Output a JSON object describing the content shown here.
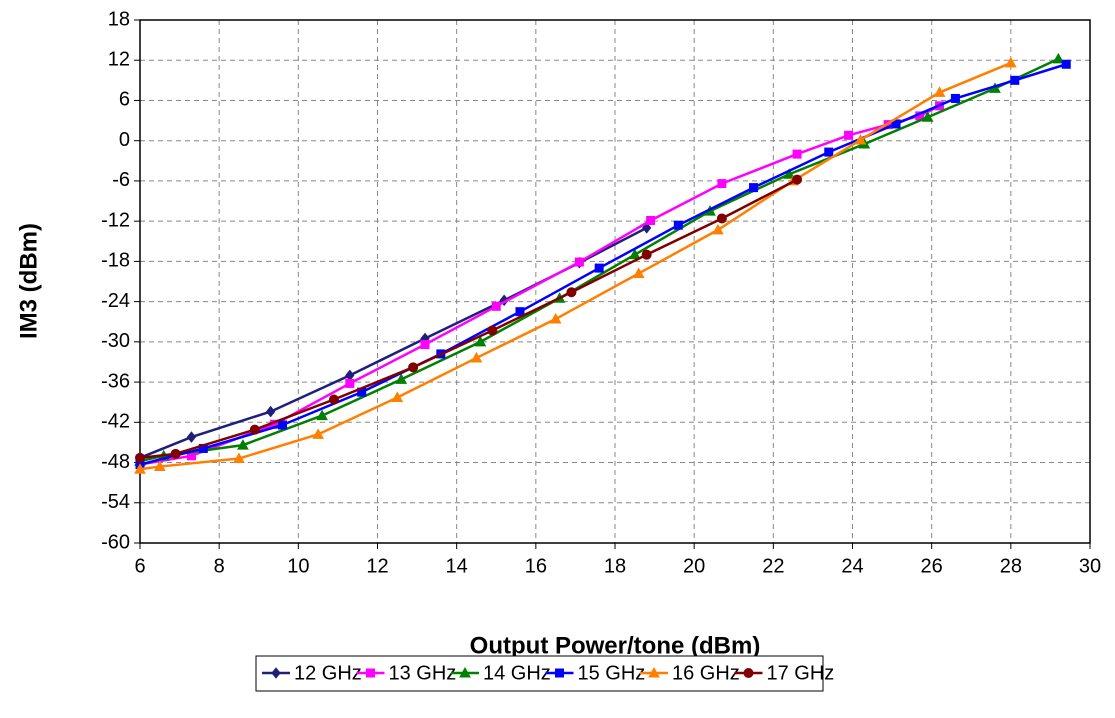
{
  "chart_data": {
    "type": "line",
    "xlabel": "Output Power/tone (dBm)",
    "ylabel": "IM3 (dBm)",
    "xlim": [
      6,
      30
    ],
    "xticks": [
      6,
      8,
      10,
      12,
      14,
      16,
      18,
      20,
      22,
      24,
      26,
      28,
      30
    ],
    "ylim": [
      -60,
      18
    ],
    "yticks": [
      -60,
      -54,
      -48,
      -42,
      -36,
      -30,
      -24,
      -18,
      -12,
      -6,
      0,
      6,
      12,
      18
    ],
    "grid": true,
    "legend": "bottom",
    "series": [
      {
        "name": "12 GHz",
        "color": "#1f1f7a",
        "marker": "diamond",
        "x": [
          6,
          7.3,
          9.3,
          11.3,
          13.2,
          15.2,
          17.1,
          18.8
        ],
        "values": [
          -47.3,
          -44.2,
          -40.4,
          -35,
          -29.5,
          -23.8,
          -18.2,
          -13
        ]
      },
      {
        "name": "13 GHz",
        "color": "#ff00ff",
        "marker": "square",
        "x": [
          6,
          7.3,
          9.4,
          11.3,
          13.2,
          15,
          17.1,
          18.9,
          20.7,
          22.6,
          23.9,
          24.9,
          25.7,
          26.2
        ],
        "values": [
          -48.3,
          -47,
          -42.3,
          -36.2,
          -30.4,
          -24.7,
          -18.1,
          -11.9,
          -6.4,
          -2,
          0.8,
          2.4,
          3.7,
          5.2
        ]
      },
      {
        "name": "14 GHz",
        "color": "#008000",
        "marker": "triangle",
        "x": [
          6,
          6.6,
          8.6,
          10.6,
          12.6,
          14.6,
          16.6,
          18.5,
          20.4,
          22.4,
          24.3,
          25.9,
          27.6,
          29.2
        ],
        "values": [
          -47.8,
          -47,
          -45.4,
          -41,
          -35.6,
          -30,
          -23.5,
          -17,
          -10.5,
          -5,
          -0.5,
          3.5,
          7.8,
          12.2
        ]
      },
      {
        "name": "15 GHz",
        "color": "#0000ff",
        "marker": "square",
        "x": [
          6,
          7.6,
          9.6,
          11.6,
          13.6,
          15.6,
          17.6,
          19.6,
          21.5,
          23.4,
          25.1,
          26.6,
          28.1,
          29.4
        ],
        "values": [
          -48.3,
          -45.9,
          -42.4,
          -37.5,
          -31.8,
          -25.5,
          -19,
          -12.6,
          -7,
          -1.7,
          2.5,
          6.3,
          9,
          11.4
        ]
      },
      {
        "name": "16 GHz",
        "color": "#ff7f00",
        "marker": "triangle",
        "x": [
          6,
          6.5,
          8.5,
          10.5,
          12.5,
          14.5,
          16.5,
          18.6,
          20.6,
          22.5,
          24.2,
          26.2,
          28
        ],
        "values": [
          -49,
          -48.6,
          -47.4,
          -43.8,
          -38.3,
          -32.4,
          -26.6,
          -19.8,
          -13.3,
          -6,
          0.1,
          7.2,
          11.6
        ]
      },
      {
        "name": "17 GHz",
        "color": "#800000",
        "marker": "circle",
        "x": [
          6,
          6.9,
          8.9,
          10.9,
          12.9,
          14.9,
          16.9,
          18.8,
          20.7,
          22.6
        ],
        "values": [
          -47.3,
          -46.7,
          -43.1,
          -38.6,
          -33.8,
          -28.3,
          -22.6,
          -17,
          -11.6,
          -5.8
        ]
      }
    ]
  }
}
